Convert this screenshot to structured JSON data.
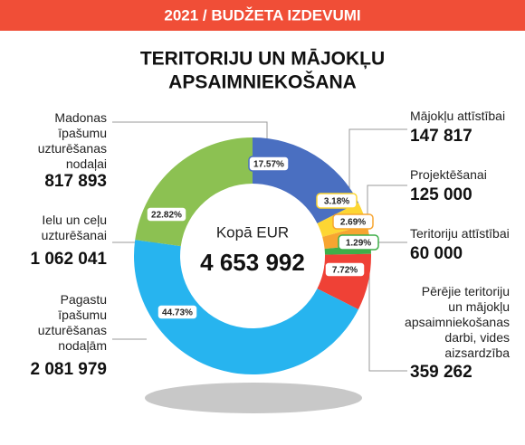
{
  "chart_data": {
    "type": "donut",
    "header": "2021 / BUDŽETA IZDEVUMI",
    "title": [
      "TERITORIJU UN MĀJOKĻU",
      "APSAIMNIEKOŠANA"
    ],
    "center_label": "Kopā EUR",
    "total": {
      "value": 4653992,
      "label": "4 653 992"
    },
    "categories": [
      "Madonas\nīpašumu\nuzturēšanas\nnodaļai",
      "Mājokļu attīstībai",
      "Projektēšanai",
      "Teritoriju attīstībai",
      "Pērējie teritoriju\nun mājokļu\napsaimniekošanas\ndarbi, vides\naizsardzība",
      "Pagastu\nīpašumu\nuzturēšanas\nnodaļām",
      "Ielu un ceļu\nuzturēšanai"
    ],
    "values": [
      817893,
      147817,
      125000,
      60000,
      359262,
      2081979,
      1062041
    ],
    "value_labels": [
      "817 893",
      "147 817",
      "125 000",
      "60 000",
      "359 262",
      "2 081 979",
      "1 062 041"
    ],
    "shares": [
      17.57,
      3.18,
      2.69,
      1.29,
      7.72,
      44.73,
      22.82
    ],
    "share_labels": [
      "17.57%",
      "3.18%",
      "2.69%",
      "1.29%",
      "7.72%",
      "44.73%",
      "22.82%"
    ],
    "colors": [
      "#4a6fc1",
      "#fdd633",
      "#f7a531",
      "#3fae49",
      "#ef4136",
      "#27b4ef",
      "#8cc152"
    ]
  }
}
